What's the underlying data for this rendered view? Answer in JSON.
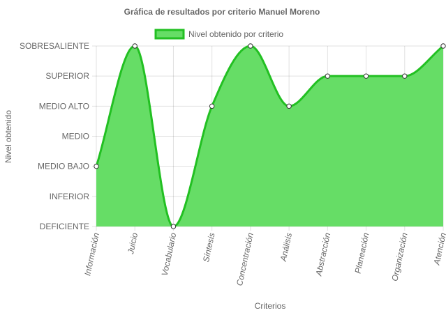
{
  "chart_data": {
    "type": "area",
    "title": "Gráfica de resultados por criterio Manuel Moreno",
    "xlabel": "Criterios",
    "ylabel": "Nivel obtenido",
    "levels": [
      "DEFICIENTE",
      "INFERIOR",
      "MEDIO BAJO",
      "MEDIO",
      "MEDIO ALTO",
      "SUPERIOR",
      "SOBRESALIENTE"
    ],
    "categories": [
      "Información",
      "Juicio",
      "Vocabulario",
      "Síntesis",
      "Concentración",
      "Análisis",
      "Abstracción",
      "Planeación",
      "Organización",
      "Atención"
    ],
    "series": [
      {
        "name": "Nivel obtenido por criterio",
        "values": [
          2,
          6,
          0,
          4,
          6,
          4,
          5,
          5,
          5,
          6
        ],
        "fill_color": "#66dd66",
        "line_color": "#22c022"
      }
    ],
    "ylim": [
      0,
      6
    ],
    "grid": true,
    "legend_position": "top"
  }
}
